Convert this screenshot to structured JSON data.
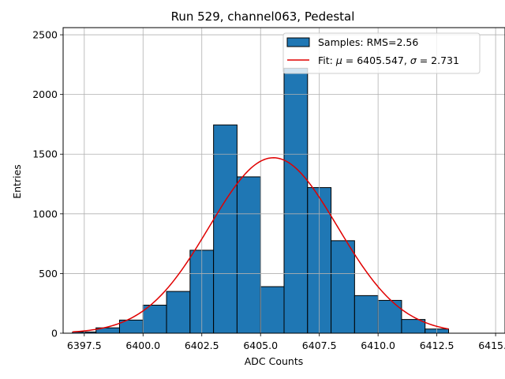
{
  "chart_data": {
    "type": "bar",
    "title": "Run 529, channel063, Pedestal",
    "xlabel": "ADC Counts",
    "ylabel": "Entries",
    "xlim": [
      6396.6,
      6415.4
    ],
    "ylim": [
      0,
      2560
    ],
    "grid": true,
    "legend_position": "top-right",
    "x_ticks": [
      6397.5,
      6400.0,
      6402.5,
      6405.0,
      6407.5,
      6410.0,
      6412.5,
      6415.0
    ],
    "x_tick_labels": [
      "6397.5",
      "6400.0",
      "6402.5",
      "6405.0",
      "6407.5",
      "6410.0",
      "6412.5",
      "6415.0"
    ],
    "y_ticks": [
      0,
      500,
      1000,
      1500,
      2000,
      2500
    ],
    "y_tick_labels": [
      "0",
      "500",
      "1000",
      "1500",
      "2000",
      "2500"
    ],
    "histogram": {
      "name": "Samples: RMS=2.56",
      "color": "#1f77b4",
      "edge_color": "#000000",
      "bin_edges": [
        6397,
        6398,
        6399,
        6400,
        6401,
        6402,
        6403,
        6404,
        6405,
        6406,
        6407,
        6408,
        6409,
        6410,
        6411,
        6412,
        6413
      ],
      "counts": [
        10,
        45,
        110,
        235,
        350,
        695,
        1745,
        1310,
        390,
        2220,
        1220,
        775,
        315,
        275,
        115,
        35
      ]
    },
    "fit": {
      "name": "Fit: μ = 6405.547, σ = 2.731",
      "label_prefix": "Fit: ",
      "mu_symbol": "μ",
      "mu_text": " = 6405.547, ",
      "sigma_symbol": "σ",
      "sigma_text": " = 2.731",
      "color": "#e00000",
      "mu": 6405.547,
      "sigma": 2.731,
      "amplitude": 1470,
      "x_range": [
        6397,
        6413
      ]
    }
  }
}
